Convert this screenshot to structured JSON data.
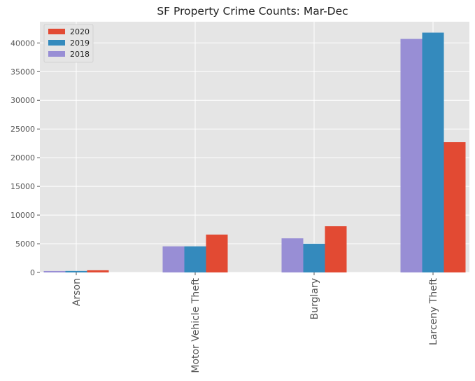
{
  "chart_data": {
    "type": "bar",
    "title": "SF Property Crime Counts: Mar-Dec",
    "xlabel": "",
    "ylabel": "",
    "categories": [
      "Arson",
      "Motor Vehicle Theft",
      "Burglary",
      "Larceny Theft"
    ],
    "series": [
      {
        "name": "2018",
        "color": "#988ED5",
        "values": [
          250,
          4550,
          5950,
          40700
        ]
      },
      {
        "name": "2019",
        "color": "#348ABD",
        "values": [
          260,
          4550,
          5000,
          41800
        ]
      },
      {
        "name": "2020",
        "color": "#E24A33",
        "values": [
          380,
          6600,
          8050,
          22700
        ]
      }
    ],
    "legend_order": [
      "2020",
      "2019",
      "2018"
    ],
    "ylim": [
      0,
      43700
    ],
    "yticks": [
      0,
      5000,
      10000,
      15000,
      20000,
      25000,
      30000,
      35000,
      40000
    ],
    "grid": true,
    "legend_position": "top-left",
    "background_color": "#E5E5E5",
    "grid_color": "#FFFFFF"
  }
}
